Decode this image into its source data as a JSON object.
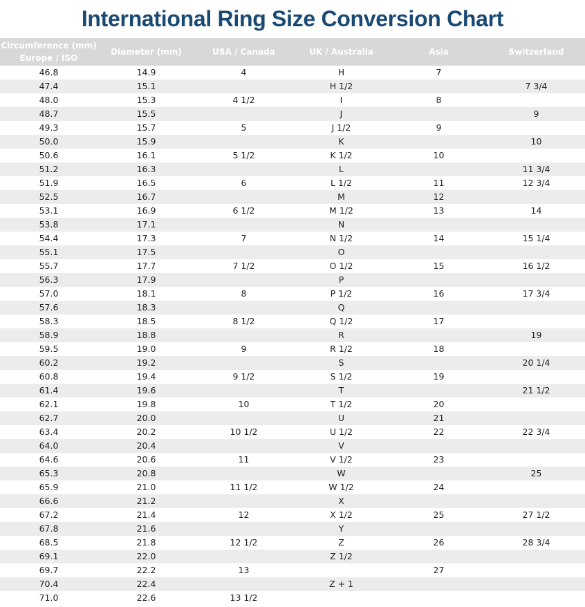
{
  "title": "International Ring Size Conversion Chart",
  "colors": {
    "title": "#1a4a73",
    "header_bg": "#d8d8d8",
    "alt_row": "#ececec"
  },
  "headers": [
    "Circumference (mm)\nEurope / ISO",
    "Diameter (mm)",
    "USA / Canada",
    "UK / Australia",
    "Asia",
    "Switzerland"
  ],
  "rows": [
    [
      "46.8",
      "14.9",
      "4",
      "H",
      "7",
      ""
    ],
    [
      "47.4",
      "15.1",
      "",
      "H 1/2",
      "",
      "7 3/4"
    ],
    [
      "48.0",
      "15.3",
      "4 1/2",
      "I",
      "8",
      ""
    ],
    [
      "48.7",
      "15.5",
      "",
      "J",
      "",
      "9"
    ],
    [
      "49.3",
      "15.7",
      "5",
      "J 1/2",
      "9",
      ""
    ],
    [
      "50.0",
      "15.9",
      "",
      "K",
      "",
      "10"
    ],
    [
      "50.6",
      "16.1",
      "5 1/2",
      "K 1/2",
      "10",
      ""
    ],
    [
      "51.2",
      "16.3",
      "",
      "L",
      "",
      "11 3/4"
    ],
    [
      "51.9",
      "16.5",
      "6",
      "L 1/2",
      "11",
      "12 3/4"
    ],
    [
      "52.5",
      "16.7",
      "",
      "M",
      "12",
      ""
    ],
    [
      "53.1",
      "16.9",
      "6 1/2",
      "M 1/2",
      "13",
      "14"
    ],
    [
      "53.8",
      "17.1",
      "",
      "N",
      "",
      ""
    ],
    [
      "54.4",
      "17.3",
      "7",
      "N 1/2",
      "14",
      "15 1/4"
    ],
    [
      "55.1",
      "17.5",
      "",
      "O",
      "",
      ""
    ],
    [
      "55.7",
      "17.7",
      "7 1/2",
      "O 1/2",
      "15",
      "16 1/2"
    ],
    [
      "56.3",
      "17.9",
      "",
      "P",
      "",
      ""
    ],
    [
      "57.0",
      "18.1",
      "8",
      "P 1/2",
      "16",
      "17 3/4"
    ],
    [
      "57.6",
      "18.3",
      "",
      "Q",
      "",
      ""
    ],
    [
      "58.3",
      "18.5",
      "8 1/2",
      "Q 1/2",
      "17",
      ""
    ],
    [
      "58.9",
      "18.8",
      "",
      "R",
      "",
      "19"
    ],
    [
      "59.5",
      "19.0",
      "9",
      "R 1/2",
      "18",
      ""
    ],
    [
      "60.2",
      "19.2",
      "",
      "S",
      "",
      "20 1/4"
    ],
    [
      "60.8",
      "19.4",
      "9 1/2",
      "S 1/2",
      "19",
      ""
    ],
    [
      "61.4",
      "19.6",
      "",
      "T",
      "",
      "21 1/2"
    ],
    [
      "62.1",
      "19.8",
      "10",
      "T 1/2",
      "20",
      ""
    ],
    [
      "62.7",
      "20.0",
      "",
      "U",
      "21",
      ""
    ],
    [
      "63.4",
      "20.2",
      "10 1/2",
      "U 1/2",
      "22",
      "22 3/4"
    ],
    [
      "64.0",
      "20.4",
      "",
      "V",
      "",
      ""
    ],
    [
      "64.6",
      "20.6",
      "11",
      "V 1/2",
      "23",
      ""
    ],
    [
      "65.3",
      "20.8",
      "",
      "W",
      "",
      "25"
    ],
    [
      "65.9",
      "21.0",
      "11 1/2",
      "W 1/2",
      "24",
      ""
    ],
    [
      "66.6",
      "21.2",
      "",
      "X",
      "",
      ""
    ],
    [
      "67.2",
      "21.4",
      "12",
      "X 1/2",
      "25",
      "27 1/2"
    ],
    [
      "67.8",
      "21.6",
      "",
      "Y",
      "",
      ""
    ],
    [
      "68.5",
      "21.8",
      "12 1/2",
      "Z",
      "26",
      "28 3/4"
    ],
    [
      "69.1",
      "22.0",
      "",
      "Z 1/2",
      "",
      ""
    ],
    [
      "69.7",
      "22.2",
      "13",
      "",
      "27",
      ""
    ],
    [
      "70.4",
      "22.4",
      "",
      "Z + 1",
      "",
      ""
    ],
    [
      "71.0",
      "22.6",
      "13 1/2",
      "",
      "",
      ""
    ]
  ]
}
